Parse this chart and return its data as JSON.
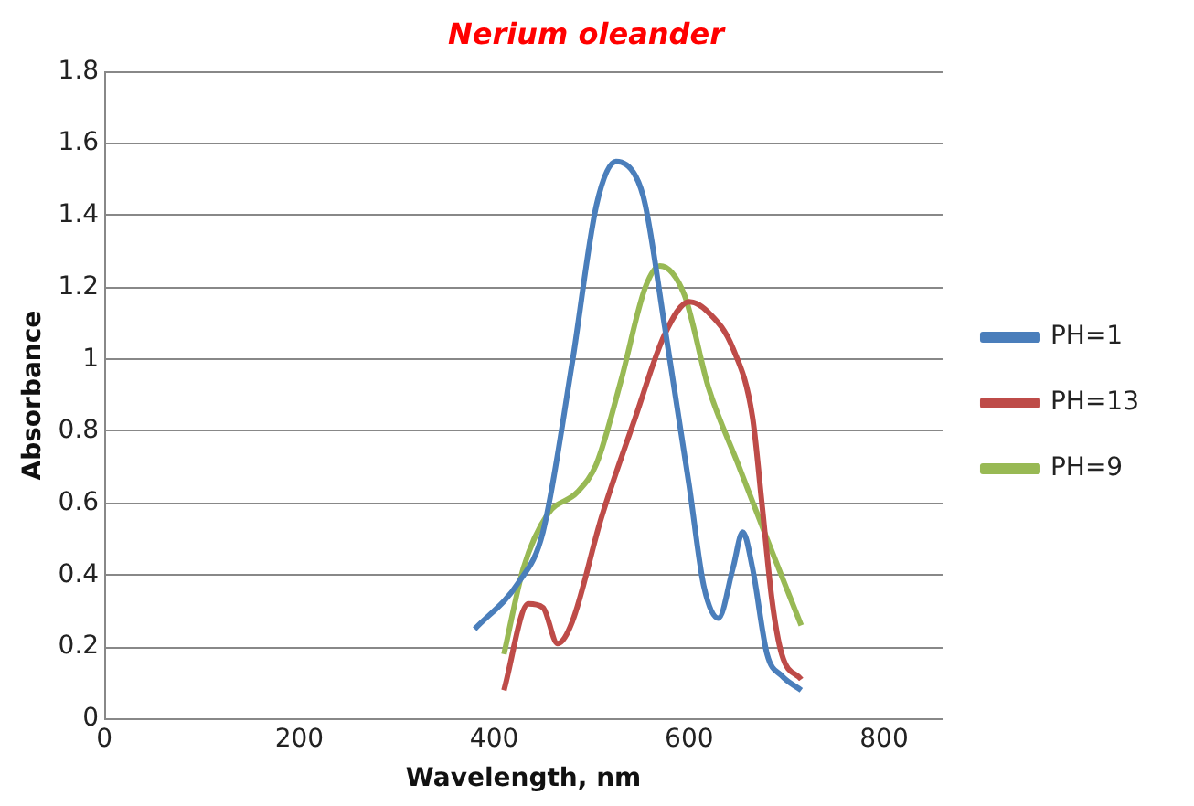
{
  "chart_data": {
    "type": "line",
    "title": "Nerium oleander",
    "xlabel": "Wavelength, nm",
    "ylabel": "Absorbance",
    "xlim": [
      0,
      860
    ],
    "xticks": [
      0,
      200,
      400,
      600,
      800
    ],
    "ylim": [
      0,
      1.8
    ],
    "yticks": [
      0,
      0.2,
      0.4,
      0.6,
      0.8,
      1,
      1.2,
      1.4,
      1.6,
      1.8
    ],
    "grid": "y",
    "legend": "right",
    "marker": "none",
    "series": [
      {
        "name": "PH=1",
        "color": "#4a7ebb",
        "x": [
          380,
          425,
          450,
          480,
          505,
          525,
          545,
          555,
          575,
          600,
          615,
          630,
          645,
          655,
          665,
          680,
          695,
          715
        ],
        "values": [
          0.25,
          0.38,
          0.52,
          0.99,
          1.43,
          1.55,
          1.51,
          1.43,
          1.09,
          0.65,
          0.37,
          0.28,
          0.42,
          0.52,
          0.42,
          0.18,
          0.12,
          0.08
        ]
      },
      {
        "name": "PH=13",
        "color": "#be4b48",
        "x": [
          410,
          435,
          450,
          465,
          480,
          510,
          545,
          575,
          600,
          620,
          645,
          665,
          675,
          685,
          695,
          715
        ],
        "values": [
          0.08,
          0.32,
          0.31,
          0.21,
          0.27,
          0.56,
          0.84,
          1.07,
          1.16,
          1.13,
          1.03,
          0.84,
          0.59,
          0.33,
          0.18,
          0.11
        ]
      },
      {
        "name": "PH=9",
        "color": "#98b954",
        "x": [
          410,
          430,
          455,
          485,
          505,
          530,
          555,
          570,
          595,
          620,
          650,
          680,
          715
        ],
        "values": [
          0.18,
          0.42,
          0.57,
          0.63,
          0.71,
          0.94,
          1.2,
          1.26,
          1.18,
          0.92,
          0.71,
          0.5,
          0.26
        ]
      }
    ]
  }
}
